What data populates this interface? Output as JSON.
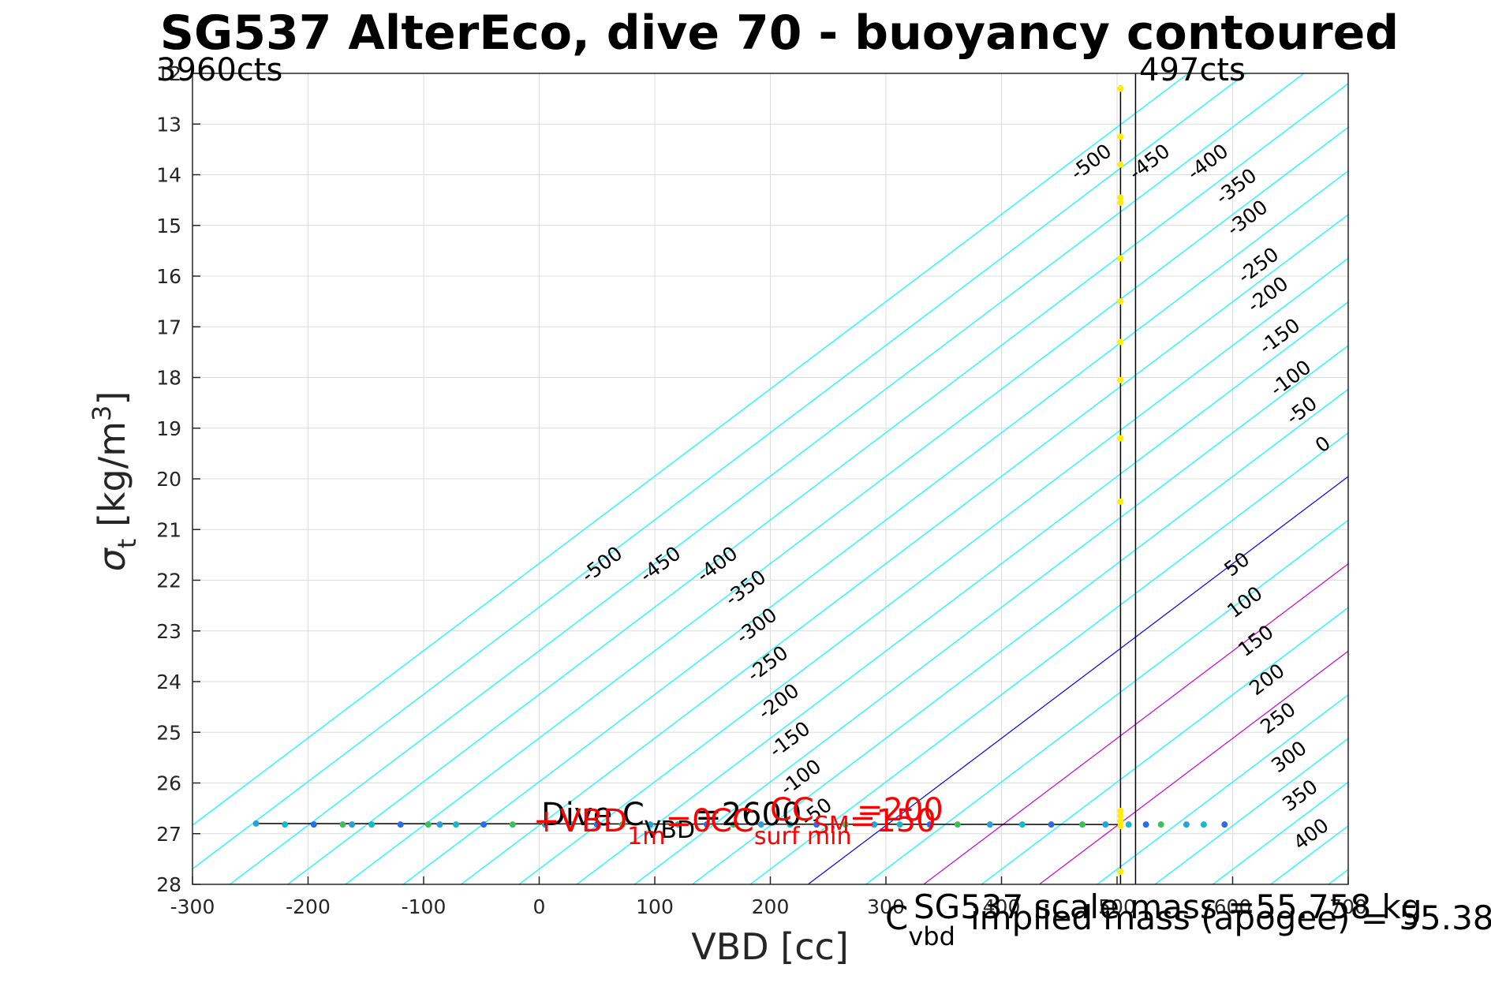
{
  "chart_data": {
    "type": "scatter",
    "title": "SG537 AlterEco, dive 70 - buoyancy contoured",
    "xlabel": "VBD [cc]",
    "ylabel": "σ_t [kg/m^3]",
    "xlim": [
      -300,
      700
    ],
    "ylim": [
      12,
      28
    ],
    "y_reversed": true,
    "grid": true,
    "x_ticks": [
      "-300",
      "-200",
      "-100",
      "0",
      "100",
      "200",
      "300",
      "400",
      "500",
      "600",
      "700"
    ],
    "y_ticks": [
      "12",
      "13",
      "14",
      "15",
      "16",
      "17",
      "18",
      "19",
      "20",
      "21",
      "22",
      "23",
      "24",
      "25",
      "26",
      "27",
      "28"
    ],
    "contour_series": [
      {
        "name": "buoyancy contours",
        "color": "#00ffff",
        "levels": [
          -500,
          -450,
          -400,
          -350,
          -300,
          -250,
          -200,
          -150,
          -100,
          -50,
          50,
          100,
          150,
          200,
          250,
          300,
          350,
          400
        ]
      },
      {
        "name": "neutral buoyancy",
        "color": "#0000ee",
        "levels": [
          0
        ]
      },
      {
        "name": "limits",
        "color": "#cc00cc",
        "levels": [
          150,
          200
        ]
      }
    ],
    "contour_labels_negative": [
      "-500",
      "-450",
      "-400",
      "-350",
      "-300",
      "-250",
      "-200",
      "-150",
      "-100",
      "-50",
      "0"
    ],
    "contour_labels_positive": [
      "50",
      "100",
      "150",
      "200",
      "250",
      "300",
      "350",
      "400"
    ],
    "contour_labels_low": [
      "-500",
      "-450",
      "-400",
      "-350",
      "-300",
      "-250",
      "-200",
      "-150",
      "-100",
      "-50"
    ],
    "dive_points": {
      "color": "#1f9fd6",
      "x": [
        -245,
        -220,
        -195,
        -170,
        -162,
        -145,
        -120,
        -96,
        -86,
        -72,
        -48,
        -23,
        5,
        28,
        50,
        72,
        96,
        120,
        145,
        168,
        192,
        217,
        240,
        265,
        290,
        312,
        338,
        362,
        390,
        418,
        443,
        470,
        490,
        510,
        525,
        538,
        560,
        575,
        593
      ],
      "y": [
        26.8,
        26.82,
        26.82,
        26.82,
        26.82,
        26.82,
        26.82,
        26.82,
        26.82,
        26.82,
        26.82,
        26.82,
        26.82,
        26.82,
        26.82,
        26.82,
        26.82,
        26.82,
        26.82,
        26.82,
        26.82,
        26.82,
        26.82,
        26.82,
        26.82,
        26.82,
        26.82,
        26.82,
        26.82,
        26.82,
        26.82,
        26.82,
        26.82,
        26.82,
        26.82,
        26.82,
        26.82,
        26.82,
        26.82
      ]
    },
    "climb_points": {
      "color": "#ffee00",
      "x": [
        503,
        503,
        503,
        503,
        503,
        503,
        503,
        503,
        503,
        503,
        503,
        503,
        503,
        503,
        503,
        503,
        503
      ],
      "y": [
        12.3,
        13.25,
        13.8,
        14.45,
        14.55,
        15.65,
        16.5,
        17.3,
        18.05,
        19.2,
        20.45,
        26.55,
        26.65,
        26.75,
        26.85,
        27.75,
        12.3
      ]
    },
    "vbd_line_x": 503,
    "vbd_line_2_x": 516,
    "annotations": {
      "left_counts": "3960cts",
      "right_counts": "497cts",
      "dive_c_vbd": "Dive C",
      "dive_c_vbd_sub": "VBD",
      "dive_c_vbd_val": "=2600",
      "red_line_1": "+VBD",
      "red_line_1_sub": "1m",
      "red_line_1_val": "=0",
      "red_cc": "CC",
      "red_cc_sub": "surf min",
      "red_cc_val": "=200",
      "red_cc_sm": "CC",
      "red_cc_sm_sub": "SM",
      "red_cc_sm_val": "=150",
      "footer_c": "C",
      "footer_c_sub": "vbd",
      "footer_scale_mass": "SG537 scale mass =55.758 kg",
      "footer_implied_mass": "implied mass (apogee) = 55.38"
    }
  }
}
